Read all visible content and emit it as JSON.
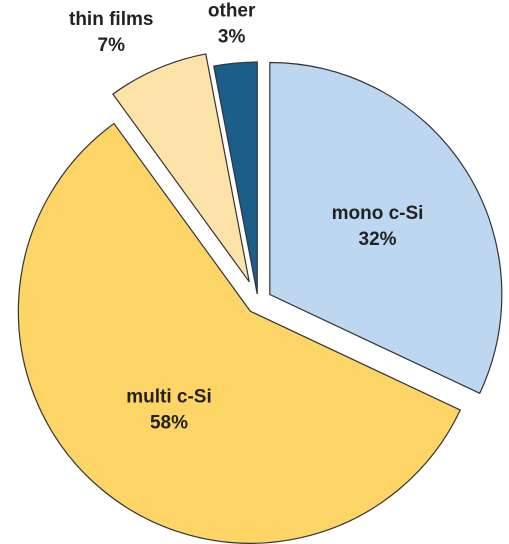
{
  "chart_data": {
    "type": "pie",
    "categories": [
      "mono c-Si",
      "multi c-Si",
      "thin films",
      "other"
    ],
    "values": [
      32,
      58,
      7,
      3
    ],
    "value_labels": [
      "32%",
      "58%",
      "7%",
      "3%"
    ],
    "colors": [
      "#bdd7f0",
      "#fdd466",
      "#fee3a8",
      "#1b5e8a"
    ]
  }
}
